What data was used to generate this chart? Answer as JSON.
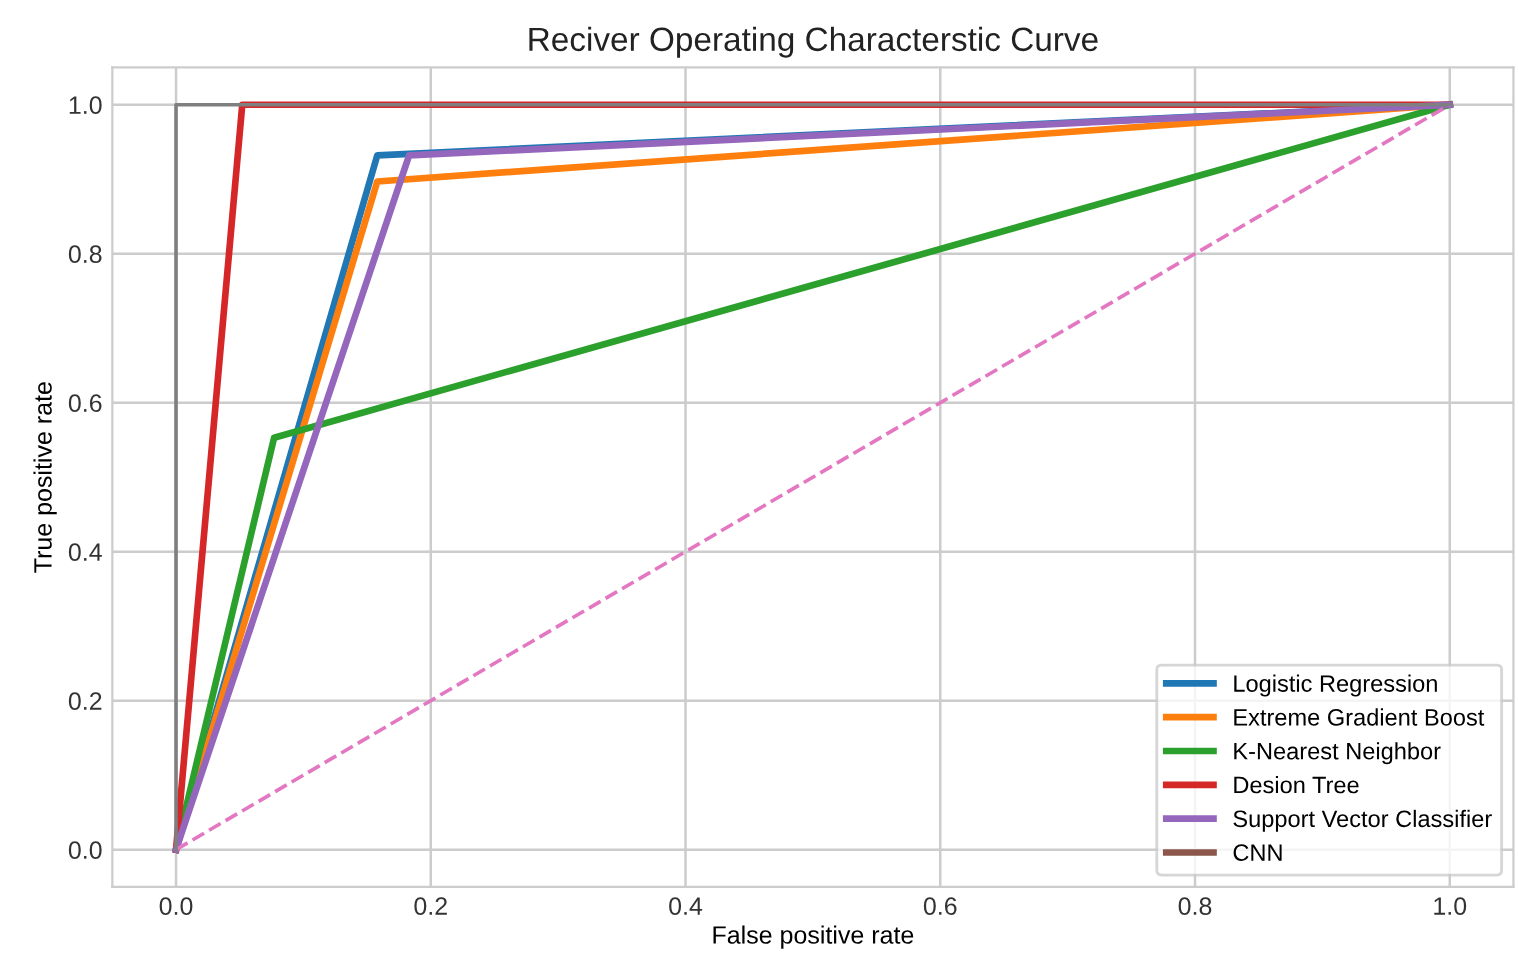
{
  "chart_data": {
    "type": "line",
    "title": "Reciver Operating Characterstic Curve",
    "xlabel": "False positive rate",
    "ylabel": "True positive rate",
    "xlim": [
      -0.05,
      1.05
    ],
    "ylim": [
      -0.05,
      1.05
    ],
    "xticks": [
      {
        "value": 0,
        "label": "0.0"
      },
      {
        "value": 0.2,
        "label": "0.2"
      },
      {
        "value": 0.4,
        "label": "0.4"
      },
      {
        "value": 0.6,
        "label": "0.6"
      },
      {
        "value": 0.8,
        "label": "0.8"
      },
      {
        "value": 1,
        "label": "1.0"
      }
    ],
    "yticks": [
      {
        "value": 0,
        "label": "0.0"
      },
      {
        "value": 0.2,
        "label": "0.2"
      },
      {
        "value": 0.4,
        "label": "0.4"
      },
      {
        "value": 0.6,
        "label": "0.6"
      },
      {
        "value": 0.8,
        "label": "0.8"
      },
      {
        "value": 1,
        "label": "1.0"
      }
    ],
    "grid": true,
    "legend": "bottom right",
    "line_style": "solid",
    "marker": "none",
    "series": [
      {
        "name": "Logistic Regression",
        "color": "#1f77b4",
        "x": [
          0,
          0.158,
          1
        ],
        "values": [
          0,
          0.932,
          1
        ]
      },
      {
        "name": "Extreme Gradient Boost",
        "color": "#ff7f0e",
        "x": [
          0,
          0.158,
          1
        ],
        "values": [
          0,
          0.897,
          1
        ]
      },
      {
        "name": "K-Nearest Neighbor",
        "color": "#2ca02c",
        "x": [
          0,
          0.077,
          1
        ],
        "values": [
          0,
          0.553,
          1
        ]
      },
      {
        "name": "Desion Tree",
        "color": "#d62728",
        "x": [
          0,
          0.052,
          1
        ],
        "values": [
          0,
          1,
          1
        ]
      },
      {
        "name": "Support Vector Classifier",
        "color": "#9467bd",
        "x": [
          0,
          0.183,
          1
        ],
        "values": [
          0,
          0.932,
          1
        ]
      },
      {
        "name": "CNN",
        "color": "#8c564b",
        "values": [
          null
        ]
      },
      {
        "color": "#e377c2",
        "x": [
          0,
          1
        ],
        "values": [
          0,
          1
        ],
        "line_style": "dashed"
      },
      {
        "color": "#7f7f7f",
        "x": [
          0,
          0,
          1
        ],
        "values": [
          0,
          1,
          1
        ]
      }
    ]
  }
}
